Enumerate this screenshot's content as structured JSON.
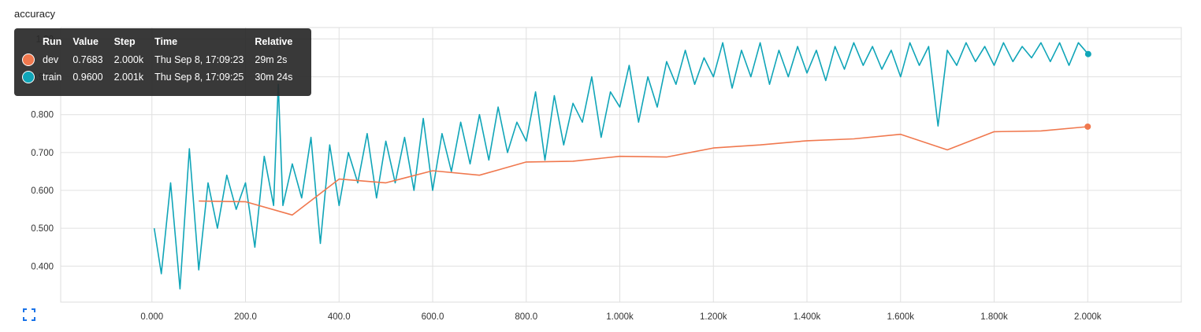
{
  "chart_title": "accuracy",
  "tooltip": {
    "headers": [
      "Run",
      "Value",
      "Step",
      "Time",
      "Relative"
    ],
    "rows": [
      {
        "run": "dev",
        "value": "0.7683",
        "step": "2.000k",
        "time": "Thu Sep 8, 17:09:23",
        "relative": "29m 2s",
        "color": "#f0784e"
      },
      {
        "run": "train",
        "value": "0.9600",
        "step": "2.001k",
        "time": "Thu Sep 8, 17:09:25",
        "relative": "30m 24s",
        "color": "#10a5b8"
      }
    ]
  },
  "chart_data": {
    "type": "line",
    "title": "accuracy",
    "xlabel": "",
    "ylabel": "",
    "xlim": [
      -195,
      2200
    ],
    "ylim": [
      0.305,
      1.03
    ],
    "x_ticks": [
      0,
      200,
      400,
      600,
      800,
      1000,
      1200,
      1400,
      1600,
      1800,
      2000
    ],
    "x_tick_labels": [
      "0.000",
      "200.0",
      "400.0",
      "600.0",
      "800.0",
      "1.000k",
      "1.200k",
      "1.400k",
      "1.600k",
      "1.800k",
      "2.000k"
    ],
    "y_ticks": [
      0.4,
      0.5,
      0.6,
      0.7,
      0.8,
      0.9,
      1.0
    ],
    "y_tick_labels": [
      "0.400",
      "0.500",
      "0.600",
      "0.700",
      "0.800",
      "0.900",
      "1.00"
    ],
    "grid": true,
    "series": [
      {
        "name": "dev",
        "color": "#f0784e",
        "x": [
          100,
          200,
          300,
          400,
          500,
          600,
          700,
          800,
          900,
          1000,
          1100,
          1200,
          1300,
          1400,
          1500,
          1600,
          1700,
          1800,
          1900,
          2000
        ],
        "values": [
          0.572,
          0.57,
          0.535,
          0.63,
          0.62,
          0.652,
          0.64,
          0.675,
          0.677,
          0.69,
          0.688,
          0.712,
          0.72,
          0.731,
          0.736,
          0.748,
          0.707,
          0.755,
          0.757,
          0.7683
        ],
        "final_marker": {
          "x": 2000,
          "y": 0.7683
        }
      },
      {
        "name": "train",
        "color": "#10a5b8",
        "x": [
          5,
          20,
          40,
          60,
          80,
          100,
          120,
          140,
          160,
          180,
          200,
          220,
          240,
          260,
          270,
          280,
          300,
          320,
          340,
          360,
          380,
          400,
          420,
          440,
          460,
          480,
          500,
          520,
          540,
          560,
          580,
          600,
          620,
          640,
          660,
          680,
          700,
          720,
          740,
          760,
          780,
          800,
          820,
          840,
          860,
          880,
          900,
          920,
          940,
          960,
          980,
          1000,
          1020,
          1040,
          1060,
          1080,
          1100,
          1120,
          1140,
          1160,
          1180,
          1200,
          1220,
          1240,
          1260,
          1280,
          1300,
          1320,
          1340,
          1360,
          1380,
          1400,
          1420,
          1440,
          1460,
          1480,
          1500,
          1520,
          1540,
          1560,
          1580,
          1600,
          1620,
          1640,
          1660,
          1680,
          1700,
          1720,
          1740,
          1760,
          1780,
          1800,
          1820,
          1840,
          1860,
          1880,
          1900,
          1920,
          1940,
          1960,
          1980,
          2001
        ],
        "values": [
          0.5,
          0.38,
          0.62,
          0.34,
          0.71,
          0.39,
          0.62,
          0.5,
          0.64,
          0.55,
          0.62,
          0.45,
          0.69,
          0.56,
          0.88,
          0.56,
          0.67,
          0.58,
          0.74,
          0.46,
          0.72,
          0.56,
          0.7,
          0.62,
          0.75,
          0.58,
          0.73,
          0.62,
          0.74,
          0.6,
          0.79,
          0.6,
          0.75,
          0.65,
          0.78,
          0.67,
          0.8,
          0.68,
          0.82,
          0.7,
          0.78,
          0.73,
          0.86,
          0.68,
          0.85,
          0.72,
          0.83,
          0.78,
          0.9,
          0.74,
          0.86,
          0.82,
          0.93,
          0.78,
          0.9,
          0.82,
          0.94,
          0.88,
          0.97,
          0.88,
          0.95,
          0.9,
          0.99,
          0.87,
          0.97,
          0.9,
          0.99,
          0.88,
          0.97,
          0.9,
          0.98,
          0.91,
          0.97,
          0.89,
          0.98,
          0.92,
          0.99,
          0.93,
          0.98,
          0.92,
          0.97,
          0.9,
          0.99,
          0.93,
          0.98,
          0.77,
          0.97,
          0.93,
          0.99,
          0.94,
          0.98,
          0.93,
          0.99,
          0.94,
          0.98,
          0.95,
          0.99,
          0.94,
          0.99,
          0.93,
          0.99,
          0.96
        ],
        "final_marker": {
          "x": 2001,
          "y": 0.96
        }
      }
    ]
  }
}
